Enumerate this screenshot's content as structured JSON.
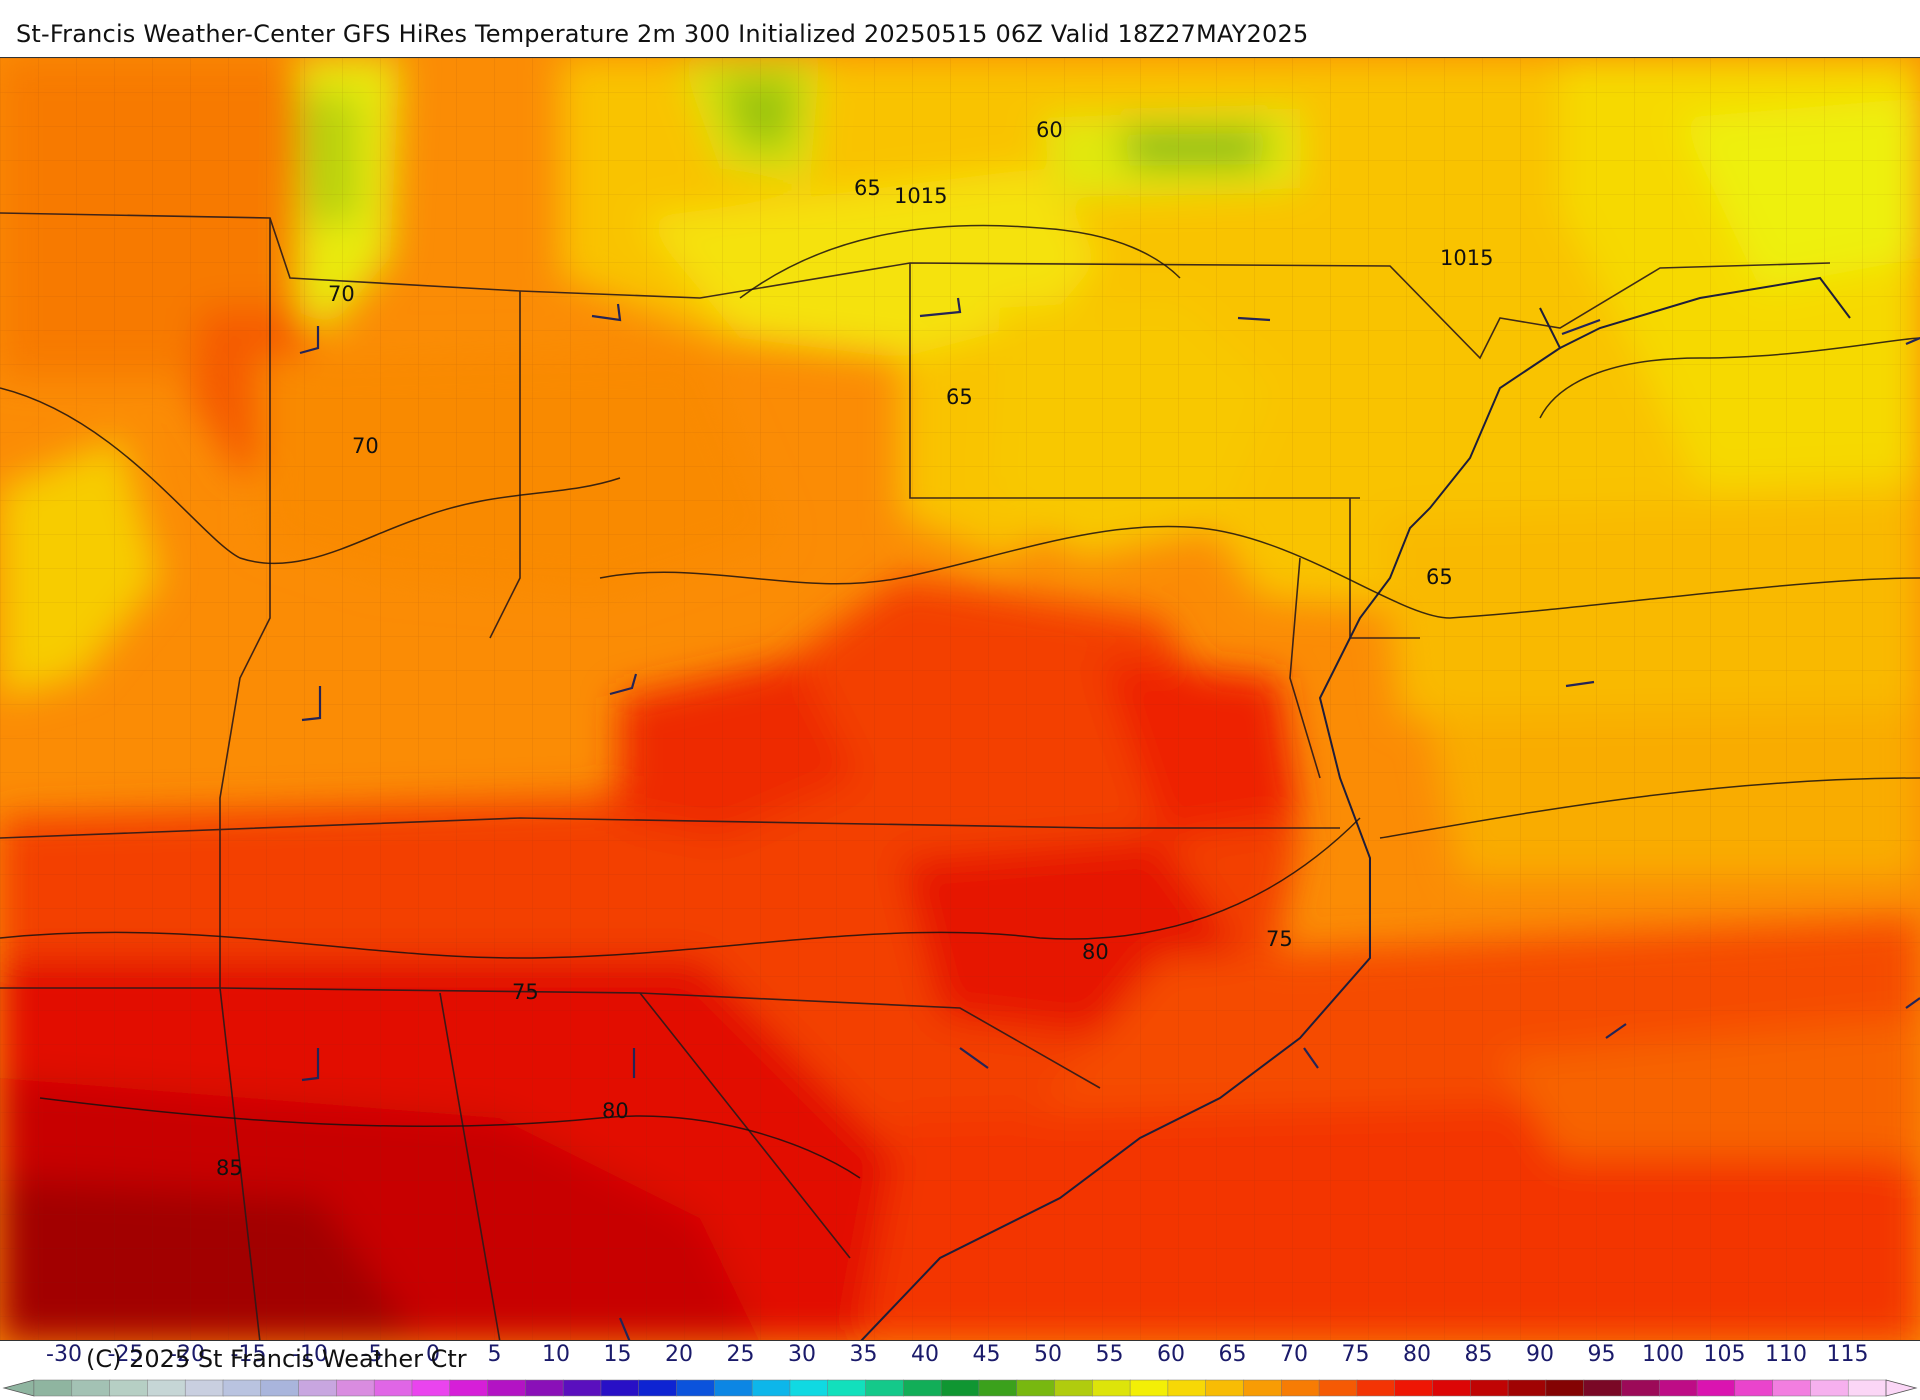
{
  "title": "St-Francis Weather-Center GFS HiRes Temperature 2m  300 Initialized 20250515 06Z Valid 18Z27MAY2025",
  "copyright": "(C) 2025 St Francis Weather Ctr",
  "map_labels": {
    "isotherm_60": "60",
    "isotherm_65_a": "65",
    "isotherm_65_b": "65",
    "isotherm_65_c": "65",
    "isotherm_70_a": "70",
    "isotherm_70_b": "70",
    "isotherm_75_a": "75",
    "isotherm_75_b": "75",
    "isotherm_80_a": "80",
    "isotherm_80_b": "80",
    "isotherm_85": "85",
    "isobar_1015_a": "1015",
    "isobar_1015_b": "1015"
  },
  "colorbar": {
    "ticks": [
      "-30",
      "-25",
      "-20",
      "-15",
      "-10",
      "-5",
      "0",
      "5",
      "10",
      "15",
      "20",
      "25",
      "30",
      "35",
      "40",
      "45",
      "50",
      "55",
      "60",
      "65",
      "70",
      "75",
      "80",
      "85",
      "90",
      "95",
      "100",
      "105",
      "110",
      "115"
    ],
    "colors": [
      "#8fb5a0",
      "#a3c2b4",
      "#b6cfc4",
      "#c6d6d6",
      "#c9cfe0",
      "#b9c3e0",
      "#a9b5dc",
      "#c8a6e0",
      "#d98ce0",
      "#e066e6",
      "#ea44ee",
      "#d61fd8",
      "#b313c4",
      "#8a10b8",
      "#5a0fbe",
      "#2810c6",
      "#0e24d2",
      "#0b53dc",
      "#0c86e4",
      "#0db6ea",
      "#10d9e2",
      "#12e0bc",
      "#14c98a",
      "#12ae58",
      "#109632",
      "#3ba11c",
      "#78b810",
      "#b0cc0e",
      "#dde40a",
      "#f3ef06",
      "#f7d806",
      "#f8bc04",
      "#f89c04",
      "#f77c04",
      "#f55a04",
      "#f33404",
      "#ee1604",
      "#dc0606",
      "#c00404",
      "#a00303",
      "#840303",
      "#7a0826",
      "#9c0a58",
      "#be0c86",
      "#da14b0",
      "#ea44cc",
      "#f27ee0",
      "#f6b0ee",
      "#fbd6f6"
    ]
  }
}
